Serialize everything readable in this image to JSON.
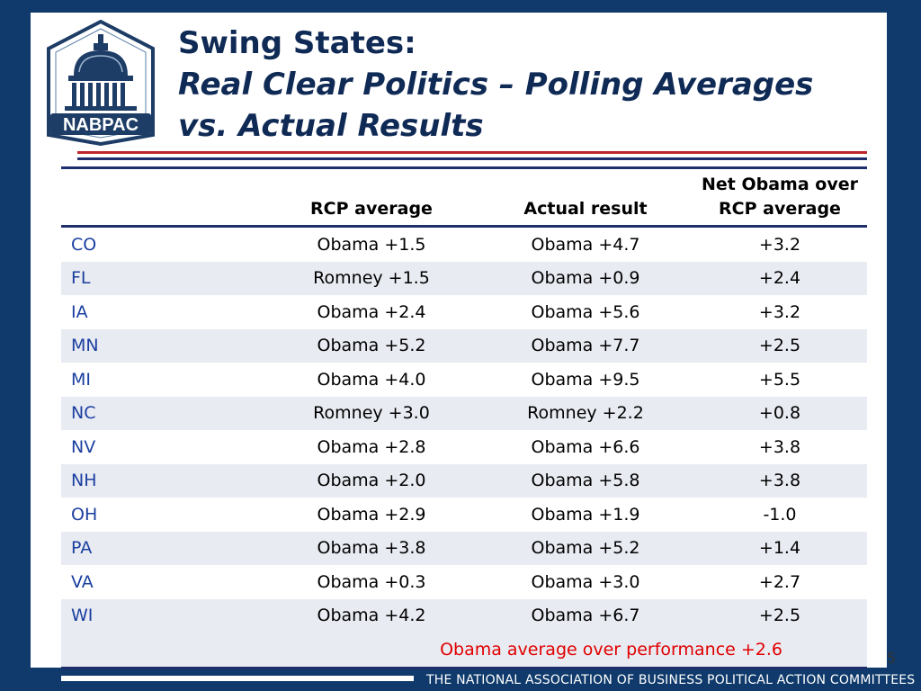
{
  "title": {
    "line1": "Swing States:",
    "line2": "Real Clear Politics – Polling Averages",
    "line3": "vs. Actual Results"
  },
  "logo": {
    "text": "NABPAC"
  },
  "table": {
    "headers": [
      "",
      "RCP average",
      "Actual result",
      "Net Obama over RCP average"
    ],
    "rows": [
      {
        "state": "CO",
        "rcp": "Obama +1.5",
        "actual": "Obama +4.7",
        "net": "+3.2"
      },
      {
        "state": "FL",
        "rcp": "Romney  +1.5",
        "actual": "Obama +0.9",
        "net": "+2.4"
      },
      {
        "state": "IA",
        "rcp": "Obama +2.4",
        "actual": "Obama +5.6",
        "net": "+3.2"
      },
      {
        "state": "MN",
        "rcp": "Obama +5.2",
        "actual": "Obama +7.7",
        "net": "+2.5"
      },
      {
        "state": "MI",
        "rcp": "Obama +4.0",
        "actual": "Obama +9.5",
        "net": "+5.5"
      },
      {
        "state": "NC",
        "rcp": "Romney +3.0",
        "actual": "Romney +2.2",
        "net": "+0.8"
      },
      {
        "state": "NV",
        "rcp": "Obama +2.8",
        "actual": "Obama +6.6",
        "net": "+3.8"
      },
      {
        "state": "NH",
        "rcp": "Obama +2.0",
        "actual": "Obama +5.8",
        "net": "+3.8"
      },
      {
        "state": "OH",
        "rcp": "Obama +2.9",
        "actual": "Obama +1.9",
        "net": "-1.0"
      },
      {
        "state": "PA",
        "rcp": "Obama +3.8",
        "actual": "Obama +5.2",
        "net": "+1.4"
      },
      {
        "state": "VA",
        "rcp": "Obama +0.3",
        "actual": "Obama +3.0",
        "net": "+2.7"
      },
      {
        "state": "WI",
        "rcp": "Obama +4.2",
        "actual": "Obama +6.7",
        "net": "+2.5"
      }
    ],
    "summary": "Obama average over performance +2.6"
  },
  "page_number": "5",
  "footer": {
    "text": "THE NATIONAL ASSOCIATION OF BUSINESS POLITICAL ACTION COMMITTEES"
  },
  "colors": {
    "background": "#0f3a6b",
    "title": "#0f2a55",
    "state_text": "#1a3fa0",
    "summary_text": "#e00000",
    "rule_red": "#c0272d",
    "rule_navy": "#1f2f6e",
    "row_shade": "#e9ebf2"
  }
}
